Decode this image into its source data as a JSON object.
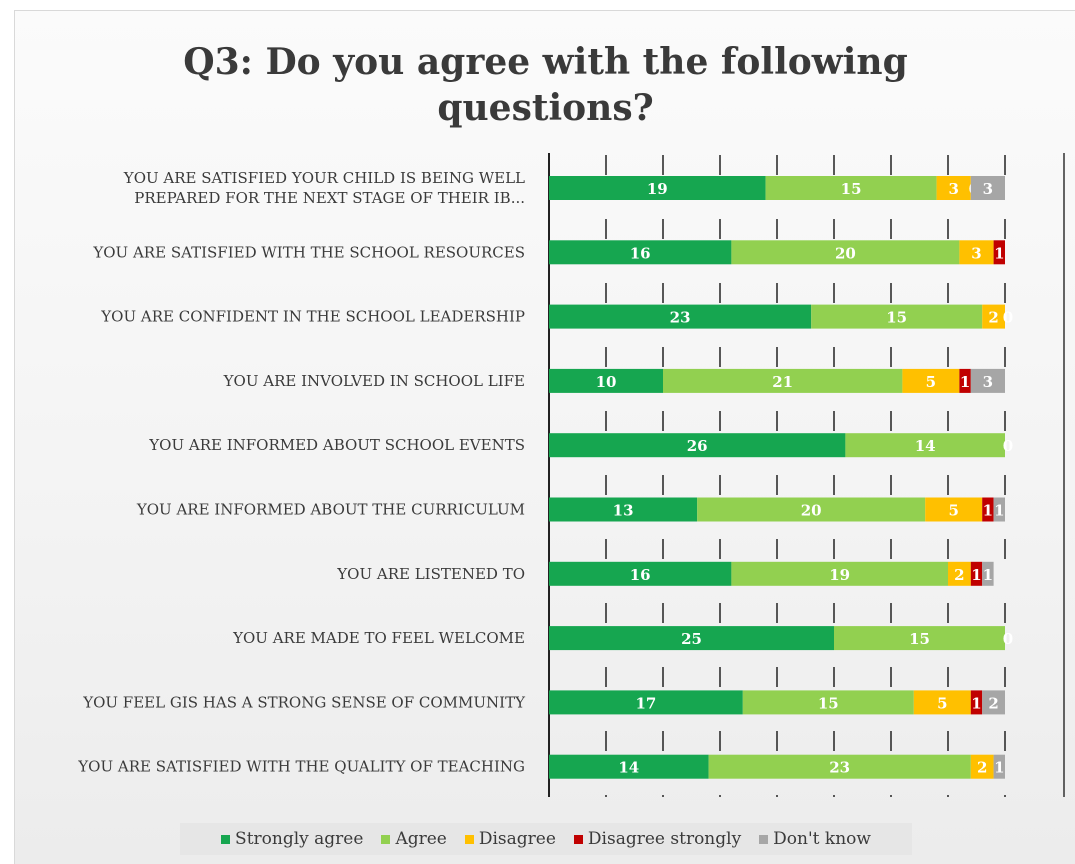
{
  "chart_data": {
    "type": "bar",
    "orientation": "horizontal",
    "stacked": true,
    "title": "Q3: Do you agree with the following questions?",
    "title_lines": [
      "Q3: Do you agree with the following",
      "questions?"
    ],
    "xlim": [
      0,
      40
    ],
    "grid": false,
    "legend_position": "bottom",
    "categories": [
      [
        "YOU ARE SATISFIED YOUR CHILD IS BEING WELL",
        "PREPARED FOR THE NEXT STAGE OF THEIR IB..."
      ],
      [
        "YOU ARE SATISFIED WITH THE SCHOOL RESOURCES"
      ],
      [
        "YOU ARE CONFIDENT IN THE SCHOOL LEADERSHIP"
      ],
      [
        "YOU ARE INVOLVED IN SCHOOL LIFE"
      ],
      [
        "YOU ARE INFORMED ABOUT SCHOOL EVENTS"
      ],
      [
        "YOU ARE INFORMED ABOUT THE CURRICULUM"
      ],
      [
        "YOU ARE LISTENED TO"
      ],
      [
        "YOU ARE MADE TO FEEL WELCOME"
      ],
      [
        "YOU FEEL GIS HAS A STRONG SENSE OF COMMUNITY"
      ],
      [
        "YOU ARE SATISFIED WITH THE QUALITY OF TEACHING"
      ]
    ],
    "series": [
      {
        "name": "Strongly agree",
        "color": "#16a650",
        "values": [
          19,
          16,
          23,
          10,
          26,
          13,
          16,
          25,
          17,
          14
        ]
      },
      {
        "name": "Agree",
        "color": "#92d050",
        "values": [
          15,
          20,
          15,
          21,
          14,
          20,
          19,
          15,
          15,
          23
        ]
      },
      {
        "name": "Disagree",
        "color": "#ffc000",
        "values": [
          3,
          3,
          2,
          5,
          0,
          5,
          2,
          0,
          5,
          2
        ]
      },
      {
        "name": "Disagree strongly",
        "color": "#c00000",
        "values": [
          0,
          1,
          0,
          1,
          0,
          1,
          1,
          0,
          1,
          0
        ]
      },
      {
        "name": "Don't know",
        "color": "#a6a6a6",
        "values": [
          3,
          0,
          0,
          3,
          0,
          1,
          1,
          0,
          2,
          1
        ]
      }
    ]
  }
}
